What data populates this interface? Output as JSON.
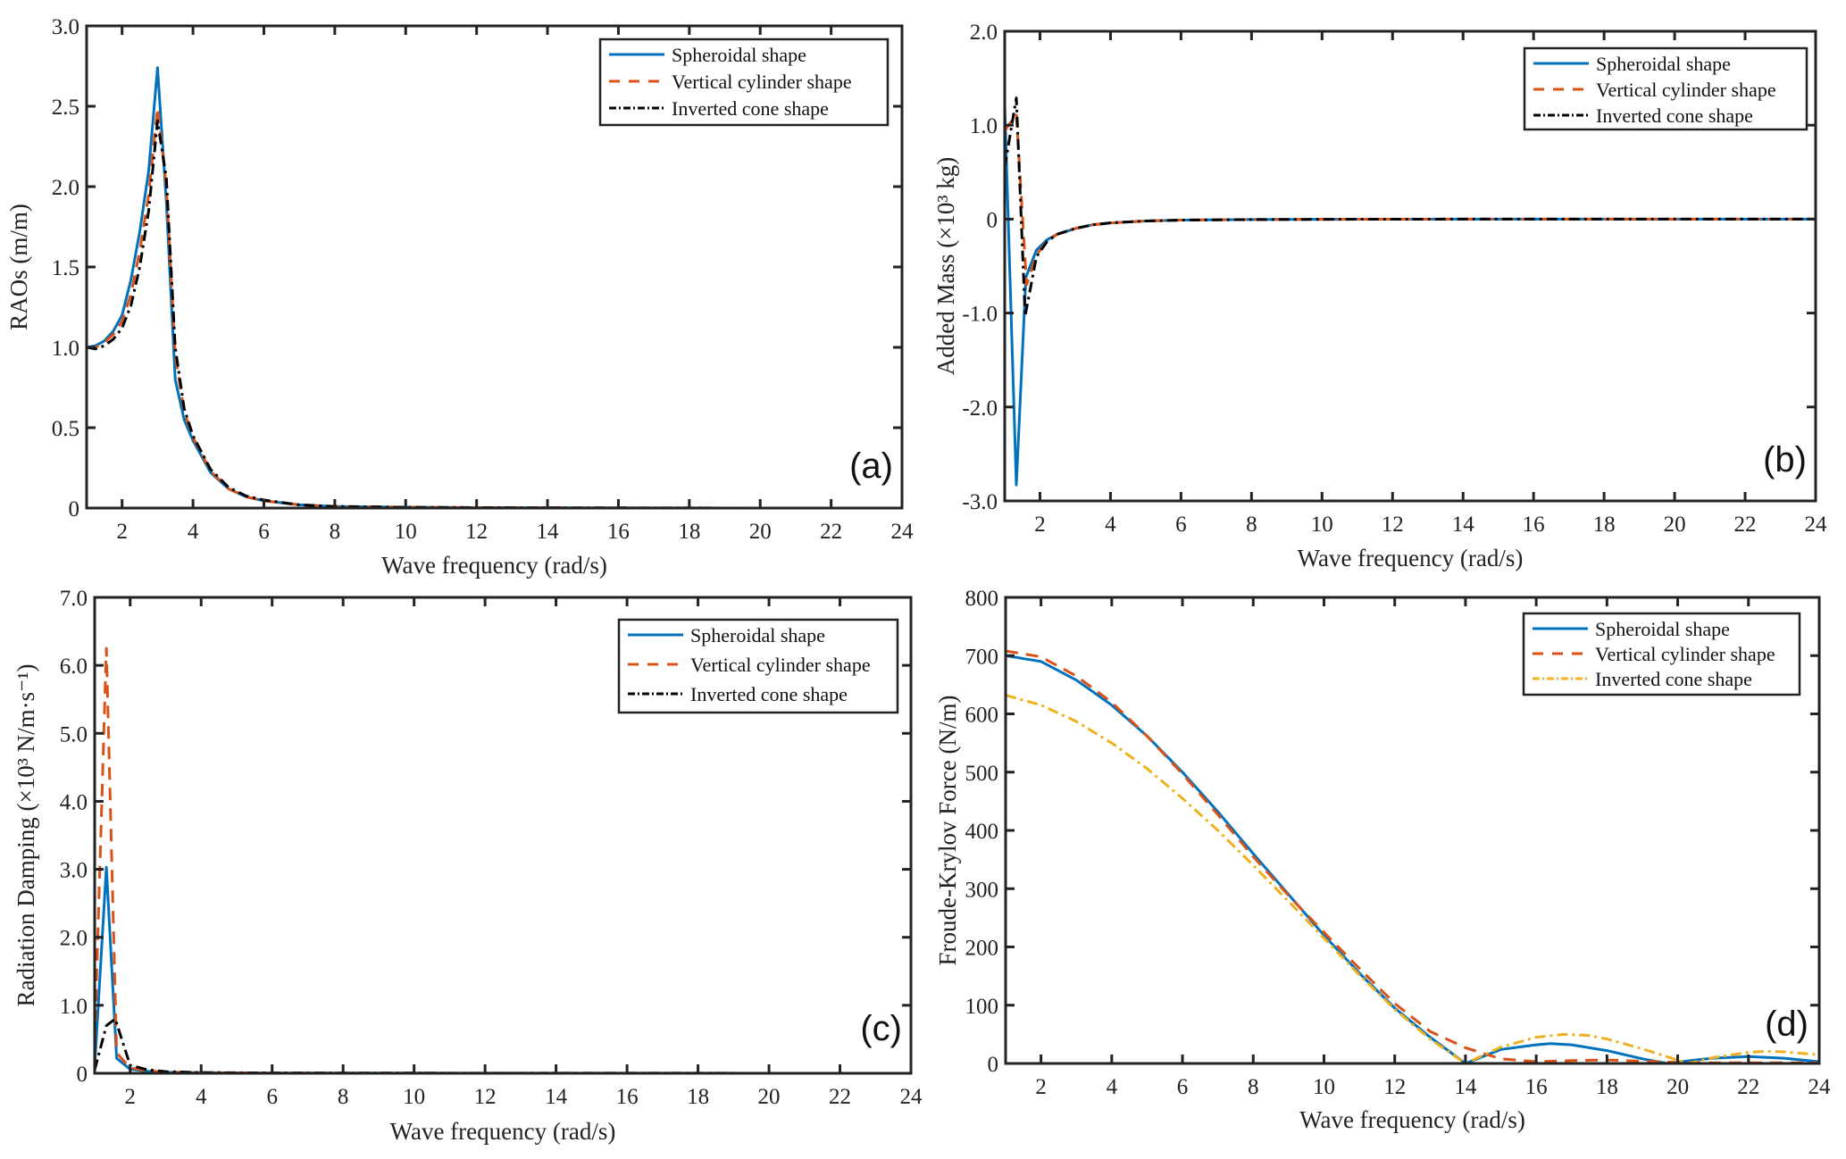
{
  "series_styles": {
    "spheroidal": {
      "name": "Spheroidal shape",
      "color": "#0072BD",
      "dash": "solid"
    },
    "cylinder": {
      "name": "Vertical cylinder shape",
      "color": "#D95319",
      "dash": "dashed"
    },
    "cone_black": {
      "name": "Inverted cone shape",
      "color": "#000000",
      "dash": "dashdot"
    },
    "cone_yellow": {
      "name": "Inverted cone shape",
      "color": "#EDB120",
      "dash": "dashdot"
    }
  },
  "chart_data": [
    {
      "id": "a",
      "type": "line",
      "panel_tag": "(a)",
      "title": "",
      "xlabel": "Wave frequency (rad/s)",
      "ylabel": "RAOs (m/m)",
      "xlim": [
        1,
        24
      ],
      "ylim": [
        0,
        3.0
      ],
      "xticks": [
        2,
        4,
        6,
        8,
        10,
        12,
        14,
        16,
        18,
        20,
        22,
        24
      ],
      "yticks": [
        0,
        0.5,
        1.0,
        1.5,
        2.0,
        2.5,
        3.0
      ],
      "ytick_labels": [
        "0",
        "0.5",
        "1.0",
        "1.5",
        "2.0",
        "2.5",
        "3.0"
      ],
      "grid": false,
      "legend_position": "top-right",
      "series": [
        {
          "style": "spheroidal",
          "name": "Spheroidal shape",
          "x": [
            1.0,
            1.25,
            1.5,
            1.75,
            2.0,
            2.25,
            2.5,
            2.75,
            3.0,
            3.25,
            3.5,
            3.75,
            4.0,
            4.5,
            5.0,
            5.5,
            6.0,
            7.0,
            8.0,
            10.0,
            12.0,
            16.0,
            20.0,
            24.0
          ],
          "y": [
            1.0,
            1.01,
            1.04,
            1.1,
            1.2,
            1.42,
            1.72,
            2.1,
            2.74,
            1.9,
            0.8,
            0.55,
            0.42,
            0.22,
            0.12,
            0.07,
            0.045,
            0.02,
            0.01,
            0.005,
            0.003,
            0.001,
            0.0,
            0.0
          ]
        },
        {
          "style": "cylinder",
          "name": "Vertical cylinder shape",
          "x": [
            1.0,
            1.25,
            1.5,
            1.75,
            2.0,
            2.25,
            2.5,
            2.75,
            3.0,
            3.25,
            3.5,
            3.75,
            4.0,
            4.5,
            5.0,
            5.5,
            6.0,
            7.0,
            8.0,
            10.0,
            12.0,
            16.0,
            20.0,
            24.0
          ],
          "y": [
            1.0,
            1.0,
            1.03,
            1.08,
            1.16,
            1.33,
            1.6,
            1.95,
            2.49,
            2.0,
            0.95,
            0.6,
            0.44,
            0.23,
            0.12,
            0.07,
            0.045,
            0.02,
            0.01,
            0.005,
            0.003,
            0.001,
            0.0,
            0.0
          ]
        },
        {
          "style": "cone_black",
          "name": "Inverted cone shape",
          "x": [
            1.0,
            1.25,
            1.5,
            1.75,
            2.0,
            2.25,
            2.5,
            2.75,
            3.0,
            3.25,
            3.5,
            3.75,
            4.0,
            4.5,
            5.0,
            5.5,
            6.0,
            7.0,
            8.0,
            10.0,
            12.0,
            16.0,
            20.0,
            24.0
          ],
          "y": [
            1.0,
            0.99,
            1.01,
            1.05,
            1.12,
            1.26,
            1.5,
            1.85,
            2.41,
            2.05,
            1.0,
            0.62,
            0.45,
            0.24,
            0.13,
            0.075,
            0.05,
            0.02,
            0.01,
            0.005,
            0.003,
            0.001,
            0.0,
            0.0
          ]
        }
      ]
    },
    {
      "id": "b",
      "type": "line",
      "panel_tag": "(b)",
      "title": "",
      "xlabel": "Wave frequency (rad/s)",
      "ylabel": "Added Mass (×10³ kg)",
      "xlim": [
        1,
        24
      ],
      "ylim": [
        -3.0,
        2.0
      ],
      "xticks": [
        2,
        4,
        6,
        8,
        10,
        12,
        14,
        16,
        18,
        20,
        22,
        24
      ],
      "yticks": [
        -3.0,
        -2.0,
        -1.0,
        0,
        1.0,
        2.0
      ],
      "ytick_labels": [
        "-3.0",
        "-2.0",
        "-1.0",
        "0",
        "1.0",
        "2.0"
      ],
      "grid": false,
      "legend_position": "top-right",
      "series": [
        {
          "style": "spheroidal",
          "name": "Spheroidal shape",
          "x": [
            1.0,
            1.33,
            1.6,
            1.9,
            2.2,
            2.5,
            3.0,
            3.5,
            4.0,
            5.0,
            6.0,
            8.0,
            10.0,
            14.0,
            18.0,
            24.0
          ],
          "y": [
            1.21,
            -2.83,
            -0.62,
            -0.33,
            -0.22,
            -0.16,
            -0.1,
            -0.06,
            -0.04,
            -0.02,
            -0.01,
            -0.005,
            -0.002,
            0.0,
            0.0,
            0.0
          ]
        },
        {
          "style": "cylinder",
          "name": "Vertical cylinder shape",
          "x": [
            1.0,
            1.15,
            1.33,
            1.62,
            1.9,
            2.2,
            2.5,
            3.0,
            3.5,
            4.0,
            5.0,
            6.0,
            8.0,
            10.0,
            14.0,
            18.0,
            24.0
          ],
          "y": [
            0.94,
            1.02,
            1.12,
            -0.7,
            -0.38,
            -0.23,
            -0.16,
            -0.1,
            -0.06,
            -0.04,
            -0.02,
            -0.01,
            -0.005,
            -0.002,
            0.0,
            0.0,
            0.0
          ]
        },
        {
          "style": "cone_black",
          "name": "Inverted cone shape",
          "x": [
            1.0,
            1.33,
            1.58,
            1.9,
            2.2,
            2.5,
            3.0,
            3.5,
            4.0,
            5.0,
            6.0,
            8.0,
            10.0,
            14.0,
            18.0,
            24.0
          ],
          "y": [
            0.55,
            1.29,
            -1.03,
            -0.4,
            -0.24,
            -0.16,
            -0.1,
            -0.06,
            -0.04,
            -0.02,
            -0.01,
            -0.005,
            -0.002,
            0.0,
            0.0,
            0.0
          ]
        }
      ]
    },
    {
      "id": "c",
      "type": "line",
      "panel_tag": "(c)",
      "title": "",
      "xlabel": "Wave frequency (rad/s)",
      "ylabel": "Radiation Damping (×10³ N/m·s⁻¹)",
      "xlim": [
        1,
        24
      ],
      "ylim": [
        0,
        7.0
      ],
      "xticks": [
        2,
        4,
        6,
        8,
        10,
        12,
        14,
        16,
        18,
        20,
        22,
        24
      ],
      "yticks": [
        0,
        1.0,
        2.0,
        3.0,
        4.0,
        5.0,
        6.0,
        7.0
      ],
      "ytick_labels": [
        "0",
        "1.0",
        "2.0",
        "3.0",
        "4.0",
        "5.0",
        "6.0",
        "7.0"
      ],
      "grid": false,
      "legend_position": "top-right",
      "series": [
        {
          "style": "spheroidal",
          "name": "Spheroidal shape",
          "x": [
            1.0,
            1.33,
            1.62,
            2.0,
            2.5,
            3.0,
            4.0,
            6.0,
            10.0,
            16.0,
            24.0
          ],
          "y": [
            0.1,
            3.03,
            0.22,
            0.06,
            0.03,
            0.015,
            0.008,
            0.004,
            0.002,
            0.001,
            0.0
          ]
        },
        {
          "style": "cylinder",
          "name": "Vertical cylinder shape",
          "x": [
            1.0,
            1.33,
            1.62,
            2.0,
            2.5,
            3.0,
            4.0,
            6.0,
            10.0,
            16.0,
            24.0
          ],
          "y": [
            0.45,
            6.25,
            0.3,
            0.08,
            0.035,
            0.018,
            0.009,
            0.004,
            0.002,
            0.001,
            0.0
          ]
        },
        {
          "style": "cone_black",
          "name": "Inverted cone shape",
          "x": [
            1.0,
            1.33,
            1.58,
            2.0,
            2.5,
            3.0,
            4.0,
            6.0,
            10.0,
            16.0,
            24.0
          ],
          "y": [
            0.05,
            0.7,
            0.8,
            0.12,
            0.05,
            0.025,
            0.01,
            0.005,
            0.002,
            0.001,
            0.0
          ]
        }
      ]
    },
    {
      "id": "d",
      "type": "line",
      "panel_tag": "(d)",
      "title": "",
      "xlabel": "Wave frequency (rad/s)",
      "ylabel": "Froude-Krylov Force (N/m)",
      "xlim": [
        1,
        24
      ],
      "ylim": [
        0,
        800
      ],
      "xticks": [
        2,
        4,
        6,
        8,
        10,
        12,
        14,
        16,
        18,
        20,
        22,
        24
      ],
      "yticks": [
        0,
        100,
        200,
        300,
        400,
        500,
        600,
        700,
        800
      ],
      "ytick_labels": [
        "0",
        "100",
        "200",
        "300",
        "400",
        "500",
        "600",
        "700",
        "800"
      ],
      "grid": false,
      "legend_position": "top-right",
      "series": [
        {
          "style": "spheroidal",
          "name": "Spheroidal shape",
          "x": [
            1,
            2,
            3,
            4,
            5,
            6,
            7,
            8,
            9,
            10,
            11,
            12,
            13,
            14,
            15,
            16,
            16.4,
            17,
            18,
            19,
            19.7,
            20.5,
            21,
            22,
            23,
            24
          ],
          "y": [
            700,
            690,
            658,
            615,
            562,
            500,
            432,
            360,
            290,
            220,
            155,
            95,
            45,
            0,
            24,
            32,
            34,
            32,
            22,
            8,
            0,
            6,
            9,
            12,
            9,
            3
          ]
        },
        {
          "style": "cylinder",
          "name": "Vertical cylinder shape",
          "x": [
            1,
            2,
            3,
            4,
            5,
            6,
            7,
            8,
            9,
            10,
            11,
            12,
            13,
            14,
            15,
            16,
            17,
            18,
            19,
            20,
            21,
            22,
            23,
            24
          ],
          "y": [
            708,
            698,
            665,
            620,
            562,
            497,
            427,
            355,
            288,
            225,
            163,
            103,
            55,
            27,
            8,
            3,
            5,
            6,
            4,
            2,
            1,
            1,
            1,
            1
          ]
        },
        {
          "style": "cone_yellow",
          "name": "Inverted cone shape",
          "x": [
            1,
            2,
            3,
            4,
            5,
            6,
            7,
            8,
            9,
            10,
            11,
            12,
            13,
            14,
            15,
            16,
            16.8,
            17.5,
            18,
            19,
            20.3,
            21,
            22,
            22.5,
            23,
            24
          ],
          "y": [
            632,
            615,
            587,
            550,
            506,
            455,
            400,
            340,
            278,
            215,
            152,
            93,
            42,
            0,
            28,
            45,
            50,
            48,
            42,
            25,
            0,
            10,
            19,
            21,
            20,
            15
          ]
        }
      ]
    }
  ]
}
